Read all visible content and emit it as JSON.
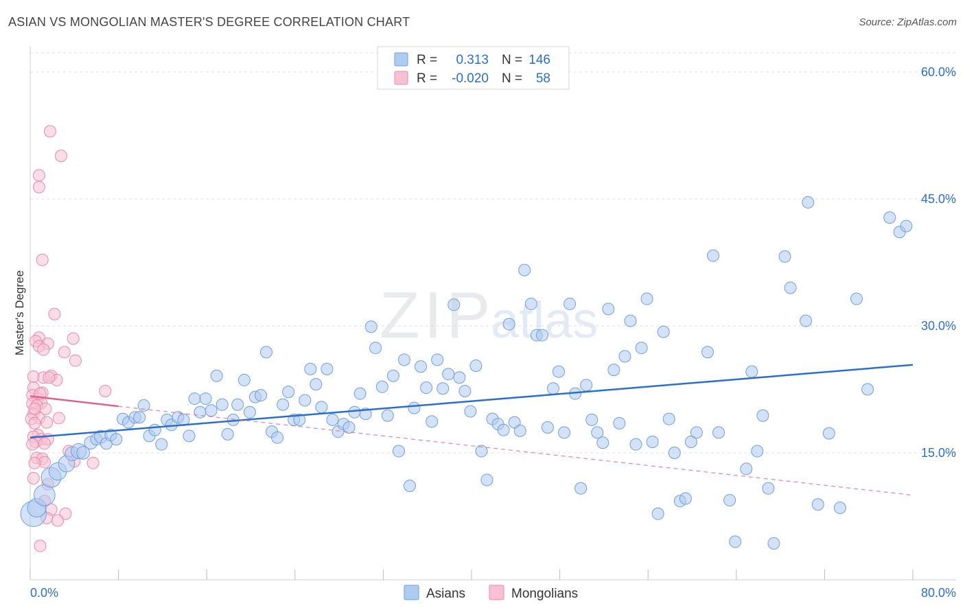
{
  "header": {
    "title": "ASIAN VS MONGOLIAN MASTER'S DEGREE CORRELATION CHART",
    "source": "Source: ZipAtlas.com"
  },
  "watermark": {
    "zip": "ZIP",
    "atlas": "atlas"
  },
  "legend_box": {
    "rows": [
      {
        "r_label": "R =",
        "r_value": "0.313",
        "n_label": "N =",
        "n_value": "146"
      },
      {
        "r_label": "R =",
        "r_value": "-0.020",
        "n_label": "N =",
        "n_value": "58"
      }
    ]
  },
  "colors": {
    "asian_fill": "#aecbf0",
    "asian_stroke": "#6f9fdc",
    "asian_line": "#2a6fcc",
    "mongolian_fill": "#f8c1d3",
    "mongolian_stroke": "#e98aa8",
    "mongolian_line": "#e0628c",
    "value_text": "#2a6fcc",
    "label_text": "#333333",
    "grid": "#dddddd"
  },
  "chart_data": {
    "type": "scatter",
    "title": "ASIAN VS MONGOLIAN MASTER'S DEGREE CORRELATION CHART",
    "xlabel": "",
    "ylabel": "Master's Degree",
    "xlim": [
      0,
      80
    ],
    "ylim": [
      0,
      63
    ],
    "x_tick_labels": [
      "0.0%",
      "80.0%"
    ],
    "y_ticks": [
      15,
      30,
      45,
      60
    ],
    "y_tick_labels": [
      "15.0%",
      "30.0%",
      "45.0%",
      "60.0%"
    ],
    "x_minor_ticks": [
      0,
      8,
      16,
      24,
      32,
      40,
      48,
      56,
      64,
      72,
      80
    ],
    "grid": true,
    "legend_position": "bottom-center",
    "series": [
      {
        "name": "Asians",
        "r": 0.313,
        "n": 146,
        "trend": {
          "x": [
            0,
            80
          ],
          "y": [
            16.8,
            25.4
          ]
        },
        "points": [
          [
            0.3,
            7.8,
            2.2
          ],
          [
            0.6,
            8.5,
            1.6
          ],
          [
            1.3,
            10.0,
            1.8
          ],
          [
            1.9,
            12.1,
            1.7
          ],
          [
            2.5,
            12.8,
            1.5
          ],
          [
            3.3,
            13.7,
            1.4
          ],
          [
            3.8,
            14.9,
            1.2
          ],
          [
            4.4,
            15.2,
            1.3
          ],
          [
            4.8,
            15.0,
            1.1
          ],
          [
            5.5,
            16.2,
            1.1
          ],
          [
            6.0,
            16.6,
            1.0
          ],
          [
            6.4,
            16.9,
            1.1
          ],
          [
            6.9,
            16.1,
            1.0
          ],
          [
            7.3,
            17.1,
            1.0
          ],
          [
            7.8,
            16.6,
            1.0
          ],
          [
            8.4,
            19.0,
            1.0
          ],
          [
            8.9,
            18.6,
            1.0
          ],
          [
            9.5,
            19.2,
            1.0
          ],
          [
            9.9,
            19.2,
            1.0
          ],
          [
            10.3,
            20.6,
            1.0
          ],
          [
            10.8,
            17.0,
            1.0
          ],
          [
            11.3,
            17.7,
            1.0
          ],
          [
            11.9,
            16.0,
            1.0
          ],
          [
            12.4,
            18.9,
            1.0
          ],
          [
            12.8,
            18.3,
            1.0
          ],
          [
            13.4,
            19.2,
            1.0
          ],
          [
            13.9,
            18.9,
            1.0
          ],
          [
            14.4,
            17.0,
            1.0
          ],
          [
            14.9,
            21.4,
            1.0
          ],
          [
            15.4,
            19.8,
            1.0
          ],
          [
            15.9,
            21.4,
            1.0
          ],
          [
            16.4,
            20.0,
            1.0
          ],
          [
            16.9,
            24.1,
            1.0
          ],
          [
            17.4,
            20.7,
            1.0
          ],
          [
            17.9,
            17.2,
            1.0
          ],
          [
            18.4,
            18.9,
            1.0
          ],
          [
            18.8,
            20.7,
            1.0
          ],
          [
            19.4,
            23.6,
            1.0
          ],
          [
            19.9,
            19.8,
            1.0
          ],
          [
            20.4,
            21.6,
            1.0
          ],
          [
            20.9,
            21.8,
            1.0
          ],
          [
            21.4,
            26.9,
            1.0
          ],
          [
            21.9,
            17.5,
            1.0
          ],
          [
            22.4,
            16.8,
            1.0
          ],
          [
            22.9,
            20.7,
            1.0
          ],
          [
            23.4,
            22.2,
            1.0
          ],
          [
            23.9,
            18.9,
            1.0
          ],
          [
            24.4,
            18.9,
            1.0
          ],
          [
            24.9,
            21.2,
            1.0
          ],
          [
            25.4,
            24.9,
            1.0
          ],
          [
            25.9,
            23.1,
            1.0
          ],
          [
            26.4,
            20.4,
            1.0
          ],
          [
            26.9,
            24.9,
            1.0
          ],
          [
            27.4,
            18.9,
            1.0
          ],
          [
            27.9,
            17.5,
            1.0
          ],
          [
            28.4,
            18.4,
            1.0
          ],
          [
            28.9,
            18.0,
            1.0
          ],
          [
            29.4,
            19.8,
            1.0
          ],
          [
            29.9,
            22.0,
            1.0
          ],
          [
            30.4,
            19.6,
            1.0
          ],
          [
            30.9,
            29.9,
            1.0
          ],
          [
            31.3,
            27.4,
            1.0
          ],
          [
            31.9,
            22.8,
            1.0
          ],
          [
            32.4,
            19.4,
            1.0
          ],
          [
            32.9,
            24.1,
            1.0
          ],
          [
            33.4,
            15.2,
            1.0
          ],
          [
            33.9,
            26.0,
            1.0
          ],
          [
            34.4,
            11.1,
            1.0
          ],
          [
            34.8,
            20.3,
            1.0
          ],
          [
            35.4,
            25.2,
            1.0
          ],
          [
            35.9,
            22.7,
            1.0
          ],
          [
            36.4,
            18.7,
            1.0
          ],
          [
            36.9,
            26.0,
            1.0
          ],
          [
            37.4,
            22.6,
            1.0
          ],
          [
            37.9,
            24.3,
            1.0
          ],
          [
            38.4,
            32.5,
            1.0
          ],
          [
            38.9,
            23.9,
            1.0
          ],
          [
            39.4,
            22.3,
            1.0
          ],
          [
            39.9,
            19.9,
            1.0
          ],
          [
            40.4,
            25.3,
            1.0
          ],
          [
            40.9,
            15.2,
            1.0
          ],
          [
            41.4,
            11.8,
            1.0
          ],
          [
            41.9,
            19.0,
            1.0
          ],
          [
            42.4,
            18.4,
            1.0
          ],
          [
            42.9,
            17.7,
            1.0
          ],
          [
            43.4,
            30.2,
            1.0
          ],
          [
            43.9,
            18.6,
            1.0
          ],
          [
            44.4,
            17.6,
            1.0
          ],
          [
            44.8,
            36.6,
            1.0
          ],
          [
            45.4,
            32.6,
            1.0
          ],
          [
            45.9,
            28.9,
            1.0
          ],
          [
            46.4,
            28.9,
            1.0
          ],
          [
            46.9,
            18.0,
            1.0
          ],
          [
            47.4,
            22.6,
            1.0
          ],
          [
            47.9,
            24.6,
            1.0
          ],
          [
            48.4,
            17.4,
            1.0
          ],
          [
            48.9,
            32.6,
            1.0
          ],
          [
            49.4,
            22.0,
            1.0
          ],
          [
            49.9,
            10.8,
            1.0
          ],
          [
            50.4,
            23.0,
            1.0
          ],
          [
            50.9,
            18.9,
            1.0
          ],
          [
            51.4,
            17.4,
            1.0
          ],
          [
            51.9,
            16.2,
            1.0
          ],
          [
            52.4,
            32.0,
            1.0
          ],
          [
            52.9,
            24.8,
            1.0
          ],
          [
            53.4,
            18.5,
            1.0
          ],
          [
            53.9,
            26.4,
            1.0
          ],
          [
            54.4,
            30.6,
            1.0
          ],
          [
            54.9,
            16.0,
            1.0
          ],
          [
            55.4,
            27.4,
            1.0
          ],
          [
            55.9,
            33.2,
            1.0
          ],
          [
            56.4,
            16.3,
            1.0
          ],
          [
            56.9,
            7.8,
            1.0
          ],
          [
            57.4,
            29.3,
            1.0
          ],
          [
            57.9,
            19.0,
            1.0
          ],
          [
            58.4,
            15.0,
            1.0
          ],
          [
            58.9,
            9.3,
            1.0
          ],
          [
            59.4,
            9.6,
            1.0
          ],
          [
            59.9,
            16.3,
            1.0
          ],
          [
            60.4,
            17.4,
            1.0
          ],
          [
            61.4,
            26.9,
            1.0
          ],
          [
            61.9,
            38.3,
            1.0
          ],
          [
            62.4,
            17.4,
            1.0
          ],
          [
            63.4,
            9.4,
            1.0
          ],
          [
            63.9,
            4.5,
            1.0
          ],
          [
            64.9,
            13.1,
            1.0
          ],
          [
            65.4,
            24.6,
            1.0
          ],
          [
            65.9,
            15.2,
            1.0
          ],
          [
            66.4,
            19.4,
            1.0
          ],
          [
            66.9,
            10.8,
            1.0
          ],
          [
            67.4,
            4.3,
            1.0
          ],
          [
            68.4,
            38.2,
            1.0
          ],
          [
            68.9,
            34.5,
            1.0
          ],
          [
            70.3,
            30.6,
            1.0
          ],
          [
            70.5,
            44.6,
            1.0
          ],
          [
            71.4,
            8.9,
            1.0
          ],
          [
            72.4,
            17.3,
            1.0
          ],
          [
            73.4,
            8.5,
            1.0
          ],
          [
            74.9,
            33.2,
            1.0
          ],
          [
            75.9,
            22.5,
            1.0
          ],
          [
            77.9,
            42.8,
            1.0
          ],
          [
            78.8,
            41.1,
            1.0
          ],
          [
            79.4,
            41.8,
            1.0
          ]
        ]
      },
      {
        "name": "Mongolians",
        "r": -0.02,
        "n": 58,
        "trend_solid": {
          "x": [
            0,
            8
          ],
          "y": [
            21.7,
            20.5
          ]
        },
        "trend_dashed": {
          "x": [
            8,
            80
          ],
          "y": [
            20.5,
            10.0
          ]
        },
        "points": [
          [
            1.8,
            53.0
          ],
          [
            2.8,
            50.1
          ],
          [
            0.8,
            47.8
          ],
          [
            0.8,
            46.4
          ],
          [
            1.1,
            37.8
          ],
          [
            2.2,
            31.4
          ],
          [
            0.8,
            28.6
          ],
          [
            3.9,
            28.5
          ],
          [
            0.5,
            28.2
          ],
          [
            1.6,
            27.9
          ],
          [
            0.8,
            27.6
          ],
          [
            1.2,
            27.2
          ],
          [
            3.1,
            26.9
          ],
          [
            4.1,
            25.9
          ],
          [
            0.3,
            24.0
          ],
          [
            1.2,
            23.9
          ],
          [
            1.9,
            24.1
          ],
          [
            2.4,
            23.6
          ],
          [
            1.1,
            22.1
          ],
          [
            0.3,
            22.7
          ],
          [
            0.2,
            21.8
          ],
          [
            0.7,
            21.4
          ],
          [
            1.0,
            20.9
          ],
          [
            0.2,
            20.8
          ],
          [
            0.6,
            20.6
          ],
          [
            1.4,
            20.2
          ],
          [
            0.3,
            19.6
          ],
          [
            0.8,
            19.1
          ],
          [
            0.1,
            19.0
          ],
          [
            2.6,
            19.1
          ],
          [
            1.5,
            18.6
          ],
          [
            0.4,
            18.5
          ],
          [
            6.8,
            22.3
          ],
          [
            0.7,
            17.1
          ],
          [
            0.3,
            16.9
          ],
          [
            1.0,
            16.6
          ],
          [
            1.6,
            16.6
          ],
          [
            0.5,
            16.3
          ],
          [
            1.3,
            16.1
          ],
          [
            0.2,
            16.0
          ],
          [
            3.5,
            15.2
          ],
          [
            0.6,
            14.4
          ],
          [
            1.1,
            14.3
          ],
          [
            1.3,
            13.9
          ],
          [
            0.4,
            13.8
          ],
          [
            4.0,
            14.0
          ],
          [
            5.7,
            13.8
          ],
          [
            0.3,
            12.0
          ],
          [
            1.6,
            11.3
          ],
          [
            1.3,
            9.3
          ],
          [
            1.9,
            8.3
          ],
          [
            1.5,
            7.3
          ],
          [
            3.2,
            7.8
          ],
          [
            2.5,
            7.0
          ],
          [
            0.9,
            4.0
          ],
          [
            0.4,
            20.2
          ],
          [
            0.9,
            22.0
          ],
          [
            1.7,
            23.9
          ]
        ]
      }
    ]
  }
}
